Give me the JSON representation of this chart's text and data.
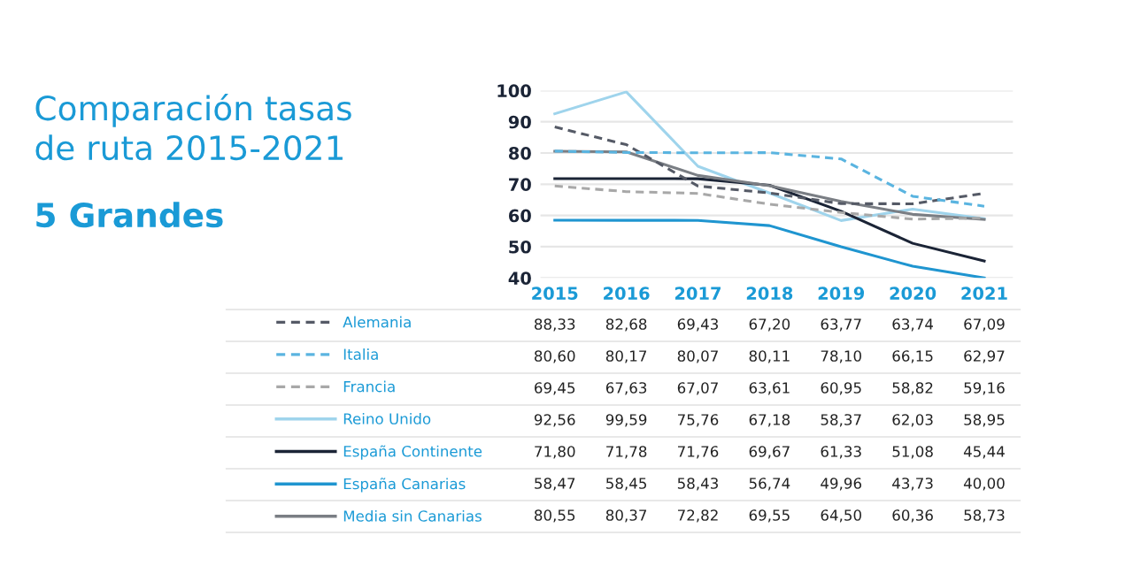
{
  "chart_data": {
    "type": "line",
    "title": "Comparación tasas\nde ruta 2015-2021",
    "subtitle": "5 Grandes",
    "categories": [
      "2015",
      "2016",
      "2017",
      "2018",
      "2019",
      "2020",
      "2021"
    ],
    "ylim": [
      40,
      100
    ],
    "yticks": [
      40,
      50,
      60,
      70,
      80,
      90,
      100
    ],
    "grid": "y",
    "legend": "bottom",
    "marker": "none",
    "series": [
      {
        "name": "Alemania",
        "color": "#555a66",
        "line_style": "dashed",
        "values": [
          88.33,
          82.68,
          69.43,
          67.2,
          63.77,
          63.74,
          67.09
        ],
        "value_labels": [
          "88,33",
          "82,68",
          "69,43",
          "67,20",
          "63,77",
          "63,74",
          "67,09"
        ]
      },
      {
        "name": "Italia",
        "color": "#5ab4e0",
        "line_style": "dashed",
        "values": [
          80.6,
          80.17,
          80.07,
          80.11,
          78.1,
          66.15,
          62.97
        ],
        "value_labels": [
          "80,60",
          "80,17",
          "80,07",
          "80,11",
          "78,10",
          "66,15",
          "62,97"
        ]
      },
      {
        "name": "Francia",
        "color": "#a8a8a8",
        "line_style": "dashed",
        "values": [
          69.45,
          67.63,
          67.07,
          63.61,
          60.95,
          58.82,
          59.16
        ],
        "value_labels": [
          "69,45",
          "67,63",
          "67,07",
          "63,61",
          "60,95",
          "58,82",
          "59,16"
        ]
      },
      {
        "name": "Reino Unido",
        "color": "#9fd4ec",
        "line_style": "solid",
        "values": [
          92.56,
          99.59,
          75.76,
          67.18,
          58.37,
          62.03,
          58.95
        ],
        "value_labels": [
          "92,56",
          "99,59",
          "75,76",
          "67,18",
          "58,37",
          "62,03",
          "58,95"
        ]
      },
      {
        "name": "España Continente",
        "color": "#1b2436",
        "line_style": "solid",
        "values": [
          71.8,
          71.78,
          71.76,
          69.67,
          61.33,
          51.08,
          45.44
        ],
        "value_labels": [
          "71,80",
          "71,78",
          "71,76",
          "69,67",
          "61,33",
          "51,08",
          "45,44"
        ]
      },
      {
        "name": "España Canarias",
        "color": "#1f95d0",
        "line_style": "solid",
        "values": [
          58.47,
          58.45,
          58.43,
          56.74,
          49.96,
          43.73,
          40.0
        ],
        "value_labels": [
          "58,47",
          "58,45",
          "58,43",
          "56,74",
          "49,96",
          "43,73",
          "40,00"
        ]
      },
      {
        "name": "Media sin Canarias",
        "color": "#7a7e84",
        "line_style": "solid",
        "values": [
          80.55,
          80.37,
          72.82,
          69.55,
          64.5,
          60.36,
          58.73
        ],
        "value_labels": [
          "80,55",
          "80,37",
          "72,82",
          "69,55",
          "64,50",
          "60,36",
          "58,73"
        ]
      }
    ]
  }
}
